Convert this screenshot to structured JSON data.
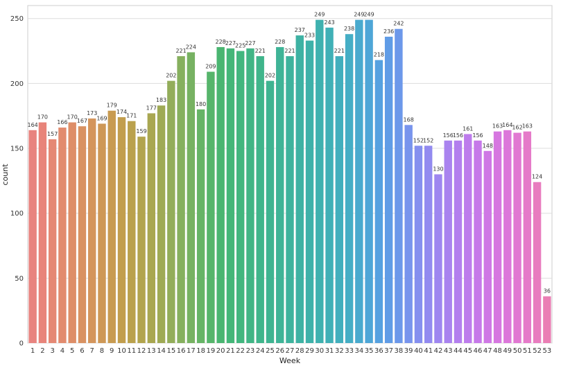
{
  "chart_data": {
    "type": "bar",
    "xlabel": "Week",
    "ylabel": "count",
    "ylim": [
      0,
      260
    ],
    "yticks": [
      0,
      50,
      100,
      150,
      200,
      250
    ],
    "grid": "horizontal",
    "categories": [
      "1",
      "2",
      "3",
      "4",
      "5",
      "6",
      "7",
      "8",
      "9",
      "10",
      "11",
      "12",
      "13",
      "14",
      "15",
      "16",
      "17",
      "18",
      "19",
      "20",
      "21",
      "22",
      "23",
      "24",
      "25",
      "26",
      "27",
      "28",
      "29",
      "30",
      "31",
      "32",
      "33",
      "34",
      "35",
      "36",
      "37",
      "38",
      "39",
      "40",
      "41",
      "42",
      "43",
      "44",
      "45",
      "46",
      "47",
      "48",
      "49",
      "50",
      "51",
      "52",
      "53"
    ],
    "values": [
      164,
      170,
      157,
      166,
      170,
      167,
      173,
      169,
      179,
      174,
      171,
      159,
      177,
      183,
      202,
      221,
      224,
      180,
      209,
      228,
      227,
      225,
      227,
      221,
      202,
      228,
      221,
      237,
      233,
      249,
      243,
      221,
      238,
      249,
      249,
      218,
      236,
      242,
      168,
      152,
      152,
      130,
      156,
      156,
      161,
      156,
      148,
      163,
      164,
      162,
      163,
      124,
      36
    ],
    "colors": [
      "#E8837F",
      "#E8847A",
      "#E58874",
      "#E28B6E",
      "#DE8E68",
      "#D99262",
      "#D4955C",
      "#CE9856",
      "#C89B51",
      "#C29E4E",
      "#BAA14D",
      "#B2A44E",
      "#A9A751",
      "#9FAA55",
      "#93AD5A",
      "#86B05E",
      "#77B262",
      "#66B466",
      "#56B56B",
      "#4AB571",
      "#44B678",
      "#42B67E",
      "#41B585",
      "#40B58B",
      "#3FB491",
      "#3FB497",
      "#3EB39D",
      "#3EB2A3",
      "#3EB1A9",
      "#3FB1AF",
      "#40B0B6",
      "#42AFBD",
      "#45AEC5",
      "#49AACE",
      "#4EA6D7",
      "#56A1E0",
      "#609CE6",
      "#6C98EA",
      "#7894ED",
      "#858FEF",
      "#928AF0",
      "#9E86F0",
      "#A983EF",
      "#B37FEE",
      "#BD7CEC",
      "#C679E9",
      "#CF78E5",
      "#D677E0",
      "#DC77DA",
      "#E178D2",
      "#E57AC9",
      "#E87CBF",
      "#EA7EB4"
    ]
  }
}
